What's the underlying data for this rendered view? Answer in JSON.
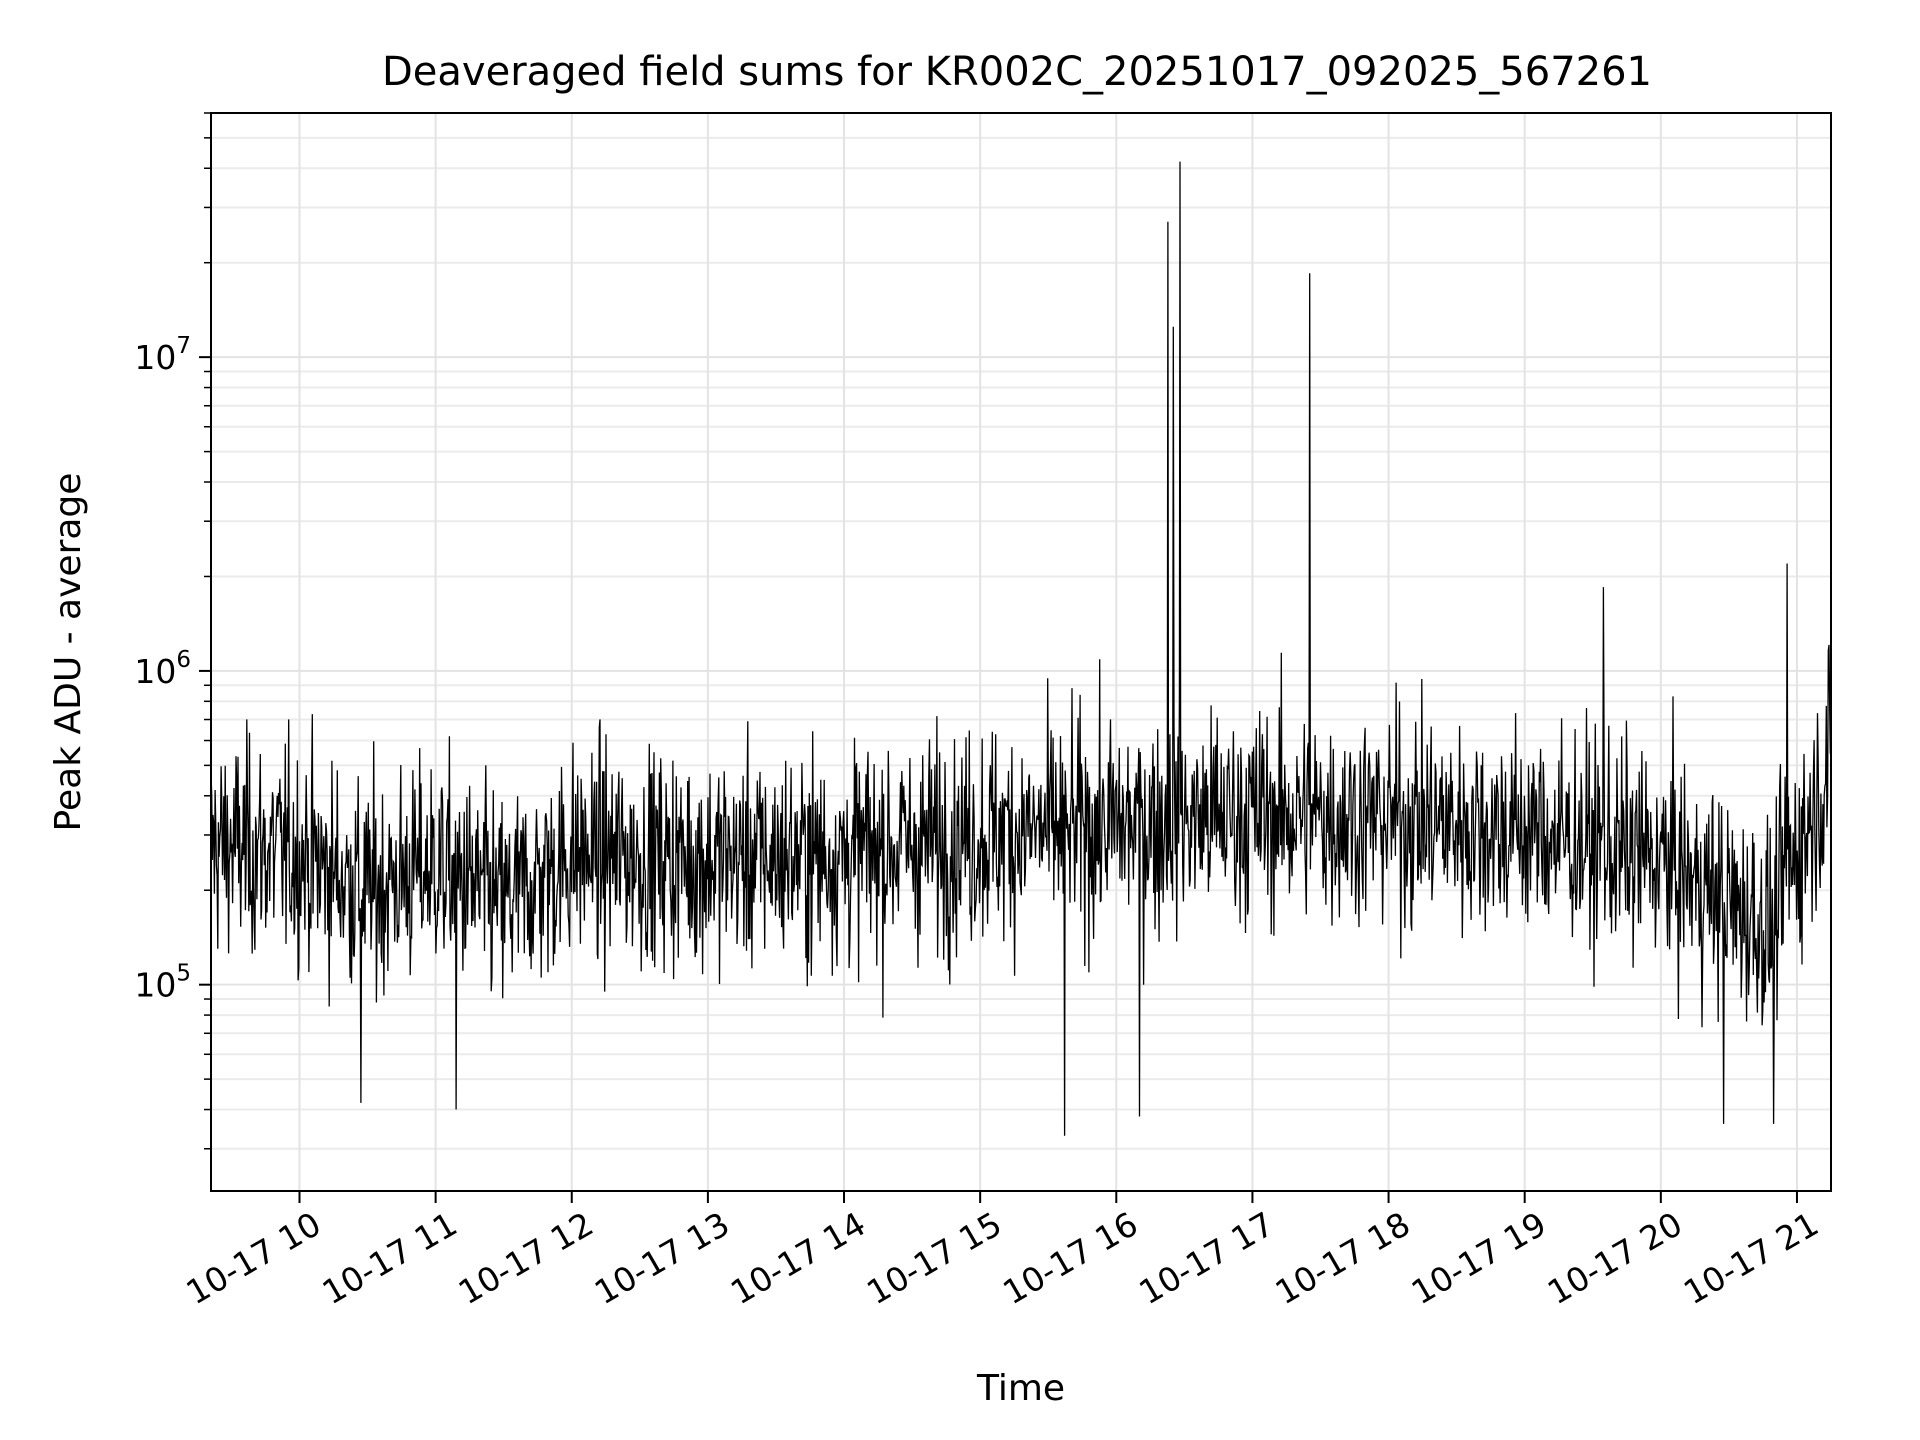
{
  "chart_data": {
    "type": "line",
    "title": "Deaveraged field sums for KR002C_20251017_092025_567261",
    "xlabel": "Time",
    "ylabel": "Peak ADU - average",
    "yscale": "log",
    "ylim": [
      22000,
      60000000
    ],
    "xlim_hours": [
      9.35,
      21.25
    ],
    "grid": "on (major and minor)",
    "line_color": "#000000",
    "x_ticks": [
      {
        "hour": 10,
        "label": "10-17 10"
      },
      {
        "hour": 11,
        "label": "10-17 11"
      },
      {
        "hour": 12,
        "label": "10-17 12"
      },
      {
        "hour": 13,
        "label": "10-17 13"
      },
      {
        "hour": 14,
        "label": "10-17 14"
      },
      {
        "hour": 15,
        "label": "10-17 15"
      },
      {
        "hour": 16,
        "label": "10-17 16"
      },
      {
        "hour": 17,
        "label": "10-17 17"
      },
      {
        "hour": 18,
        "label": "10-17 18"
      },
      {
        "hour": 19,
        "label": "10-17 19"
      },
      {
        "hour": 20,
        "label": "10-17 20"
      },
      {
        "hour": 21,
        "label": "10-17 21"
      }
    ],
    "y_ticks": [
      {
        "value": 100000,
        "base": "10",
        "exp": "5"
      },
      {
        "value": 1000000,
        "base": "10",
        "exp": "6"
      },
      {
        "value": 10000000,
        "base": "10",
        "exp": "7"
      }
    ],
    "series": [
      {
        "name": "Peak ADU - average",
        "description": "dense noisy trace; baseline level by hour (approx.)",
        "baseline": [
          {
            "hour": 9.35,
            "value": 280000
          },
          {
            "hour": 10.0,
            "value": 260000
          },
          {
            "hour": 10.5,
            "value": 200000
          },
          {
            "hour": 11.0,
            "value": 240000
          },
          {
            "hour": 11.5,
            "value": 180000
          },
          {
            "hour": 12.0,
            "value": 260000
          },
          {
            "hour": 13.0,
            "value": 250000
          },
          {
            "hour": 14.0,
            "value": 260000
          },
          {
            "hour": 15.0,
            "value": 300000
          },
          {
            "hour": 16.0,
            "value": 320000
          },
          {
            "hour": 17.0,
            "value": 350000
          },
          {
            "hour": 18.0,
            "value": 340000
          },
          {
            "hour": 19.0,
            "value": 310000
          },
          {
            "hour": 20.0,
            "value": 250000
          },
          {
            "hour": 20.8,
            "value": 150000
          },
          {
            "hour": 21.25,
            "value": 520000
          }
        ],
        "spikes": [
          {
            "hour": 16.38,
            "value": 27000000
          },
          {
            "hour": 16.42,
            "value": 12500000
          },
          {
            "hour": 16.47,
            "value": 42000000
          },
          {
            "hour": 17.42,
            "value": 18500000
          },
          {
            "hour": 20.93,
            "value": 2200000
          },
          {
            "hour": 19.58,
            "value": 1850000
          }
        ],
        "dips": [
          {
            "hour": 15.62,
            "value": 33000
          },
          {
            "hour": 16.17,
            "value": 38000
          },
          {
            "hour": 20.46,
            "value": 36000
          },
          {
            "hour": 20.83,
            "value": 36000
          },
          {
            "hour": 11.15,
            "value": 40000
          },
          {
            "hour": 10.45,
            "value": 42000
          }
        ]
      }
    ]
  }
}
